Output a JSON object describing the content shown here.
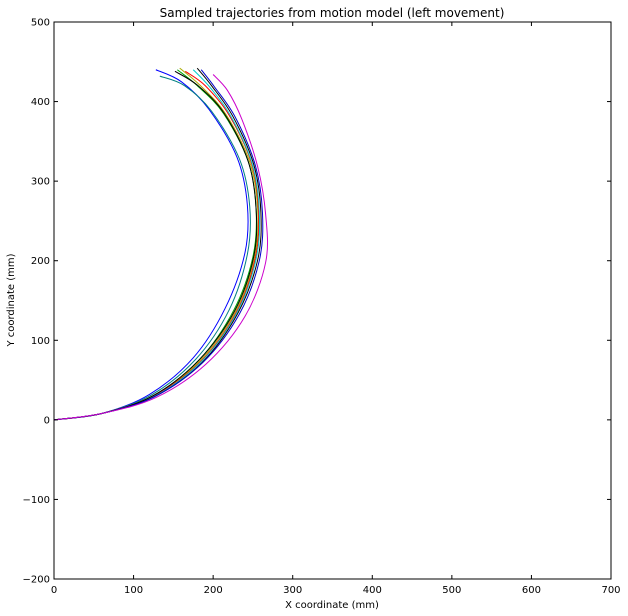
{
  "chart_data": {
    "type": "line",
    "title": "Sampled trajectories from motion model (left movement)",
    "xlabel": "X coordinate (mm)",
    "ylabel": "Y coordinate (mm)",
    "xlim": [
      0,
      700
    ],
    "ylim": [
      -200,
      500
    ],
    "xticks": [
      0,
      100,
      200,
      300,
      400,
      500,
      600,
      700
    ],
    "yticks": [
      -200,
      -100,
      0,
      100,
      200,
      300,
      400,
      500
    ],
    "xtick_labels": [
      "0",
      "100",
      "200",
      "300",
      "400",
      "500",
      "600",
      "700"
    ],
    "ytick_labels": [
      "−200",
      "−100",
      "0",
      "100",
      "200",
      "300",
      "400",
      "500"
    ],
    "grid": false,
    "legend": null,
    "series": [
      {
        "color": "#0000ff",
        "x": [
          0,
          60,
          120,
          175,
          215,
          240,
          243,
          230,
          195,
          160,
          128
        ],
        "y": [
          0,
          8,
          32,
          78,
          140,
          210,
          270,
          330,
          390,
          425,
          440
        ]
      },
      {
        "color": "#008080",
        "x": [
          0,
          60,
          122,
          178,
          220,
          243,
          246,
          233,
          198,
          164,
          133
        ],
        "y": [
          0,
          8,
          31,
          76,
          138,
          208,
          268,
          328,
          388,
          420,
          432
        ]
      },
      {
        "color": "#00aa00",
        "x": [
          0,
          60,
          124,
          182,
          226,
          250,
          254,
          244,
          213,
          180,
          155
        ],
        "y": [
          0,
          8,
          30,
          75,
          138,
          205,
          265,
          325,
          385,
          420,
          440
        ]
      },
      {
        "color": "#aaaa00",
        "x": [
          0,
          60,
          124,
          183,
          228,
          252,
          256,
          246,
          216,
          184,
          158
        ],
        "y": [
          0,
          8,
          30,
          74,
          136,
          204,
          264,
          324,
          384,
          420,
          442
        ]
      },
      {
        "color": "#ff0000",
        "x": [
          0,
          60,
          125,
          184,
          229,
          253,
          257,
          248,
          220,
          190,
          165
        ],
        "y": [
          0,
          8,
          30,
          73,
          135,
          203,
          263,
          323,
          383,
          420,
          438
        ]
      },
      {
        "color": "#00cccc",
        "x": [
          0,
          60,
          125,
          185,
          230,
          254,
          258,
          249,
          222,
          196,
          175
        ],
        "y": [
          0,
          8,
          29,
          73,
          135,
          202,
          262,
          322,
          382,
          418,
          440
        ]
      },
      {
        "color": "#000000",
        "x": [
          0,
          60,
          124,
          182,
          227,
          251,
          254,
          244,
          214,
          181,
          152
        ],
        "y": [
          0,
          8,
          30,
          75,
          137,
          205,
          265,
          325,
          385,
          420,
          438
        ]
      },
      {
        "color": "#000000",
        "x": [
          0,
          60,
          126,
          186,
          231,
          256,
          260,
          251,
          225,
          198,
          180
        ],
        "y": [
          0,
          8,
          29,
          72,
          134,
          201,
          261,
          321,
          381,
          420,
          442
        ]
      },
      {
        "color": "#0000cc",
        "x": [
          0,
          60,
          126,
          187,
          233,
          258,
          262,
          253,
          228,
          202,
          185
        ],
        "y": [
          0,
          8,
          29,
          72,
          133,
          200,
          260,
          320,
          380,
          418,
          440
        ]
      },
      {
        "color": "#cc00cc",
        "x": [
          0,
          60,
          128,
          191,
          240,
          266,
          266,
          256,
          236,
          218,
          200
        ],
        "y": [
          0,
          8,
          28,
          70,
          130,
          198,
          258,
          318,
          378,
          414,
          434
        ]
      }
    ]
  }
}
